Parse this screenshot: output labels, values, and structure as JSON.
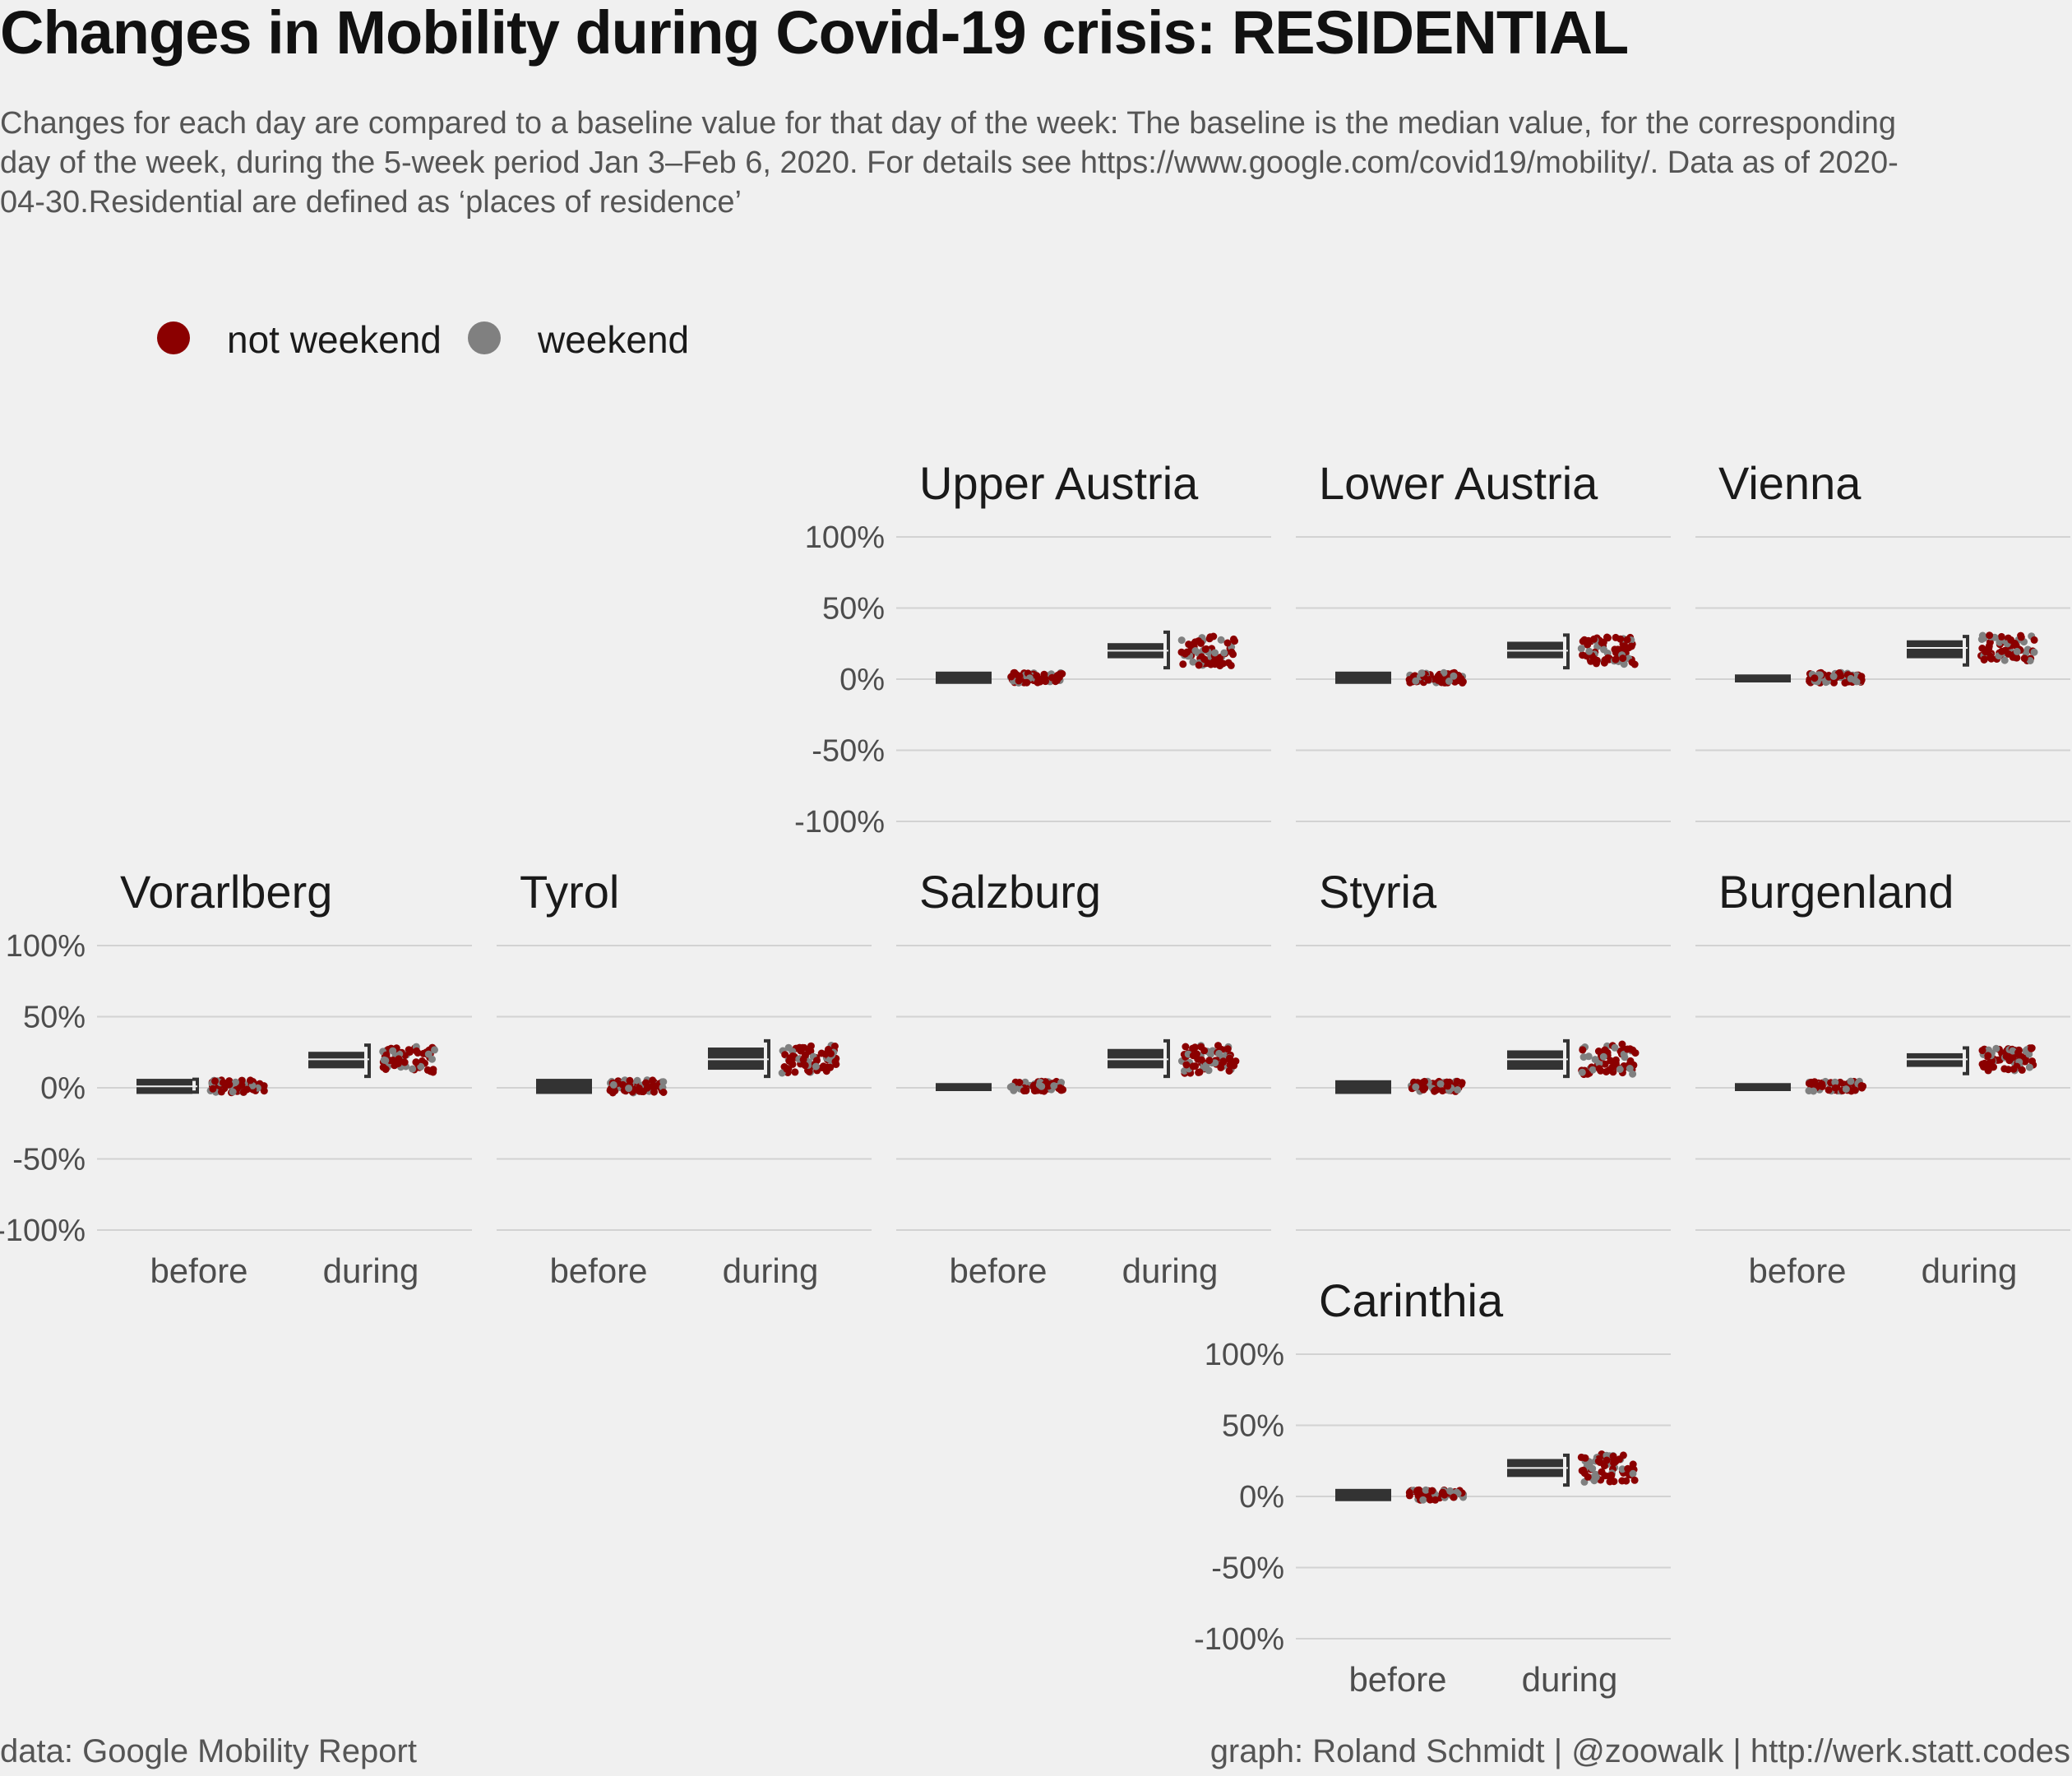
{
  "title": "Changes in Mobility during Covid-19 crisis: RESIDENTIAL",
  "subtitle": "Changes for each day are compared to a baseline value for that day of the week: The baseline is the median value, for the corresponding day of the week, during the 5-week period Jan 3–Feb 6, 2020. For details see https://www.google.com/covid19/mobility/. Data as of 2020-04-30.Residential are defined as ‘places of residence’",
  "caption_left": "data: Google Mobility Report",
  "caption_right": "graph: Roland Schmidt | @zoowalk | http://werk.statt.codes",
  "colors": {
    "not_weekend": "#8b0000",
    "weekend": "#808080",
    "box": "#333333",
    "grid": "#d2d2d2",
    "background": "#f0f0f0"
  },
  "chart_data": {
    "type": "scatter",
    "description_free": true,
    "legend": {
      "position": "top-left",
      "entries": [
        "not weekend",
        "weekend"
      ]
    },
    "categories": [
      "before",
      "during"
    ],
    "y_ticks": [
      100,
      50,
      0,
      -50,
      -100
    ],
    "y_tick_labels": [
      "100%",
      "50%",
      "0%",
      "-50%",
      "-100%"
    ],
    "ylim": [
      -100,
      100
    ],
    "grid": true,
    "facets": [
      {
        "name": "Upper Austria",
        "before": {
          "q1": -1,
          "median": 1,
          "q3": 3,
          "min": -3,
          "max": 5,
          "spread": 4
        },
        "during": {
          "q1": 17,
          "median": 20,
          "q3": 23,
          "min": 8,
          "max": 33,
          "spread": 12
        }
      },
      {
        "name": "Lower Austria",
        "before": {
          "q1": -1,
          "median": 1,
          "q3": 3,
          "min": -2,
          "max": 5,
          "spread": 4
        },
        "during": {
          "q1": 17,
          "median": 20,
          "q3": 24,
          "min": 8,
          "max": 31,
          "spread": 11
        }
      },
      {
        "name": "Vienna",
        "before": {
          "q1": 0,
          "median": 1,
          "q3": 1,
          "min": 0,
          "max": 2,
          "spread": 4
        },
        "during": {
          "q1": 17,
          "median": 22,
          "q3": 25,
          "min": 10,
          "max": 30,
          "spread": 10
        }
      },
      {
        "name": "Vorarlberg",
        "before": {
          "q1": -2,
          "median": 1,
          "q3": 4,
          "min": -3,
          "max": 6,
          "spread": 5
        },
        "during": {
          "q1": 16,
          "median": 20,
          "q3": 23,
          "min": 8,
          "max": 30,
          "spread": 10
        }
      },
      {
        "name": "Tyrol",
        "before": {
          "q1": -2,
          "median": 1,
          "q3": 4,
          "min": -2,
          "max": 6,
          "spread": 5
        },
        "during": {
          "q1": 15,
          "median": 20,
          "q3": 26,
          "min": 8,
          "max": 33,
          "spread": 11
        }
      },
      {
        "name": "Salzburg",
        "before": {
          "q1": 0,
          "median": 1,
          "q3": 1,
          "min": 0,
          "max": 2,
          "spread": 4
        },
        "during": {
          "q1": 16,
          "median": 20,
          "q3": 25,
          "min": 8,
          "max": 33,
          "spread": 11
        }
      },
      {
        "name": "Styria",
        "before": {
          "q1": -2,
          "median": 1,
          "q3": 3,
          "min": -2,
          "max": 5,
          "spread": 4
        },
        "during": {
          "q1": 15,
          "median": 20,
          "q3": 24,
          "min": 8,
          "max": 33,
          "spread": 12
        }
      },
      {
        "name": "Burgenland",
        "before": {
          "q1": 0,
          "median": 1,
          "q3": 1,
          "min": 0,
          "max": 2,
          "spread": 4
        },
        "during": {
          "q1": 17,
          "median": 20,
          "q3": 22,
          "min": 10,
          "max": 28,
          "spread": 9
        }
      },
      {
        "name": "Carinthia",
        "before": {
          "q1": -1,
          "median": 1,
          "q3": 3,
          "min": -2,
          "max": 5,
          "spread": 4
        },
        "during": {
          "q1": 16,
          "median": 20,
          "q3": 24,
          "min": 8,
          "max": 29,
          "spread": 11
        }
      }
    ]
  }
}
